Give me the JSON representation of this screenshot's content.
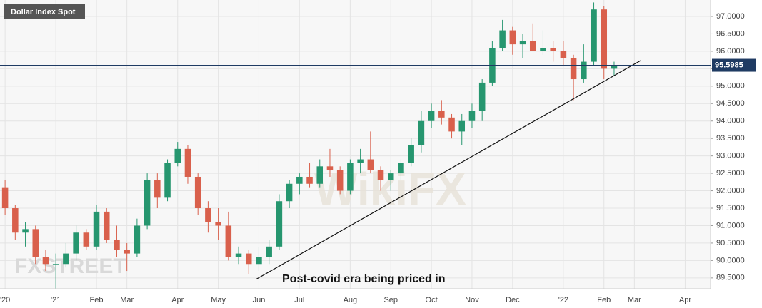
{
  "chart_data": {
    "type": "candlestick",
    "title": "Dollar Index Spot",
    "annotation": "Post-covid era being priced in",
    "watermarks": [
      "FXSTREET",
      "WikiFX"
    ],
    "up_color": "#26966f",
    "down_color": "#d9604c",
    "last_value": 95.5985,
    "categories": [
      "'20",
      null,
      null,
      null,
      null,
      "'21",
      null,
      null,
      null,
      "Feb",
      null,
      null,
      "Mar",
      null,
      null,
      null,
      null,
      "Apr",
      null,
      null,
      null,
      "May",
      null,
      null,
      null,
      "Jun",
      null,
      null,
      null,
      "Jul",
      null,
      null,
      null,
      null,
      "Aug",
      null,
      null,
      null,
      "Sep",
      null,
      null,
      null,
      "Oct",
      null,
      null,
      null,
      "Nov",
      null,
      null,
      null,
      "Dec",
      null,
      null,
      null,
      null,
      "'22",
      null,
      null,
      null,
      "Feb",
      null,
      null,
      "Mar",
      null,
      null,
      null,
      null,
      "Apr",
      null,
      null
    ],
    "open": [
      92.1,
      91.5,
      90.8,
      90.9,
      90.1,
      89.9,
      89.9,
      90.2,
      90.8,
      90.4,
      91.4,
      90.6,
      90.3,
      90.2,
      91.0,
      92.3,
      91.8,
      92.8,
      93.2,
      92.4,
      91.5,
      91.1,
      91.0,
      90.1,
      90.2,
      89.9,
      90.1,
      90.4,
      91.7,
      92.2,
      92.4,
      92.2,
      92.7,
      92.6,
      92.0,
      92.8,
      92.9,
      92.6,
      92.3,
      92.5,
      92.8,
      93.3,
      94.0,
      94.3,
      94.1,
      93.7,
      94.0,
      94.3,
      95.1,
      96.1,
      96.6,
      96.2,
      96.3,
      96.0,
      96.1,
      96.0,
      95.8,
      95.2,
      95.7,
      97.2,
      95.5,
      null,
      null,
      null,
      null,
      null,
      null,
      null,
      null,
      null
    ],
    "high": [
      92.3,
      91.6,
      91.1,
      91.0,
      90.3,
      90.2,
      90.5,
      91.0,
      90.9,
      91.6,
      91.5,
      91.0,
      90.5,
      91.2,
      92.5,
      92.5,
      92.9,
      93.4,
      93.3,
      92.5,
      91.7,
      91.5,
      91.4,
      90.4,
      90.3,
      90.4,
      90.6,
      91.9,
      92.3,
      92.5,
      92.8,
      92.9,
      93.2,
      92.7,
      92.9,
      93.2,
      93.7,
      92.7,
      92.6,
      92.9,
      93.5,
      94.3,
      94.5,
      94.6,
      94.2,
      94.2,
      94.5,
      95.2,
      96.3,
      96.9,
      96.7,
      96.5,
      96.8,
      96.6,
      96.3,
      96.3,
      95.9,
      96.2,
      97.4,
      97.3,
      95.7,
      null,
      null,
      null,
      null,
      null,
      null,
      null,
      null,
      null
    ],
    "low": [
      91.3,
      90.6,
      90.4,
      89.9,
      89.7,
      89.2,
      89.8,
      90.0,
      90.3,
      90.3,
      90.5,
      90.1,
      89.7,
      90.1,
      90.9,
      91.5,
      91.7,
      92.7,
      92.2,
      91.3,
      90.8,
      90.6,
      90.0,
      89.9,
      89.6,
      89.7,
      89.9,
      90.3,
      91.5,
      91.9,
      92.1,
      92.1,
      92.4,
      91.9,
      91.9,
      92.5,
      92.5,
      92.0,
      92.0,
      92.3,
      92.7,
      93.1,
      93.8,
      93.9,
      93.5,
      93.3,
      93.8,
      94.0,
      95.0,
      96.0,
      95.9,
      95.8,
      96.0,
      95.9,
      95.7,
      95.6,
      94.6,
      95.1,
      95.6,
      95.2,
      95.3,
      null,
      null,
      null,
      null,
      null,
      null,
      null,
      null,
      null
    ],
    "close": [
      91.5,
      90.8,
      90.9,
      90.1,
      89.9,
      89.9,
      90.2,
      90.8,
      90.4,
      91.4,
      90.6,
      90.3,
      90.2,
      91.0,
      92.3,
      91.8,
      92.8,
      93.2,
      92.4,
      91.5,
      91.1,
      91.0,
      90.1,
      90.2,
      89.9,
      90.1,
      90.4,
      91.7,
      92.2,
      92.4,
      92.2,
      92.7,
      92.6,
      92.0,
      92.8,
      92.9,
      92.6,
      92.3,
      92.5,
      92.8,
      93.3,
      94.0,
      94.3,
      94.1,
      93.7,
      94.0,
      94.3,
      95.1,
      96.1,
      96.6,
      96.2,
      96.3,
      96.0,
      96.1,
      96.0,
      95.8,
      95.2,
      95.7,
      97.2,
      95.5,
      95.6,
      null,
      null,
      null,
      null,
      null,
      null,
      null,
      null,
      null
    ],
    "ylim": [
      89.19,
      97.47
    ],
    "yticks": [
      {
        "value": 89.5,
        "label": "89.5000"
      },
      {
        "value": 90,
        "label": "90.0000"
      },
      {
        "value": 90.5,
        "label": "90.5000"
      },
      {
        "value": 91,
        "label": "91.0000"
      },
      {
        "value": 91.5,
        "label": "91.5000"
      },
      {
        "value": 92,
        "label": "92.0000"
      },
      {
        "value": 92.5,
        "label": "92.5000"
      },
      {
        "value": 93,
        "label": "93.0000"
      },
      {
        "value": 93.5,
        "label": "93.5000"
      },
      {
        "value": 94,
        "label": "94.0000"
      },
      {
        "value": 94.5,
        "label": "94.5000"
      },
      {
        "value": 95,
        "label": "95.0000"
      },
      {
        "value": 95.5,
        "label": "95.5000"
      },
      {
        "value": 96,
        "label": "96.0000"
      },
      {
        "value": 96.5,
        "label": "96.5000"
      },
      {
        "value": 97,
        "label": "97.0000"
      }
    ],
    "grid": true
  }
}
